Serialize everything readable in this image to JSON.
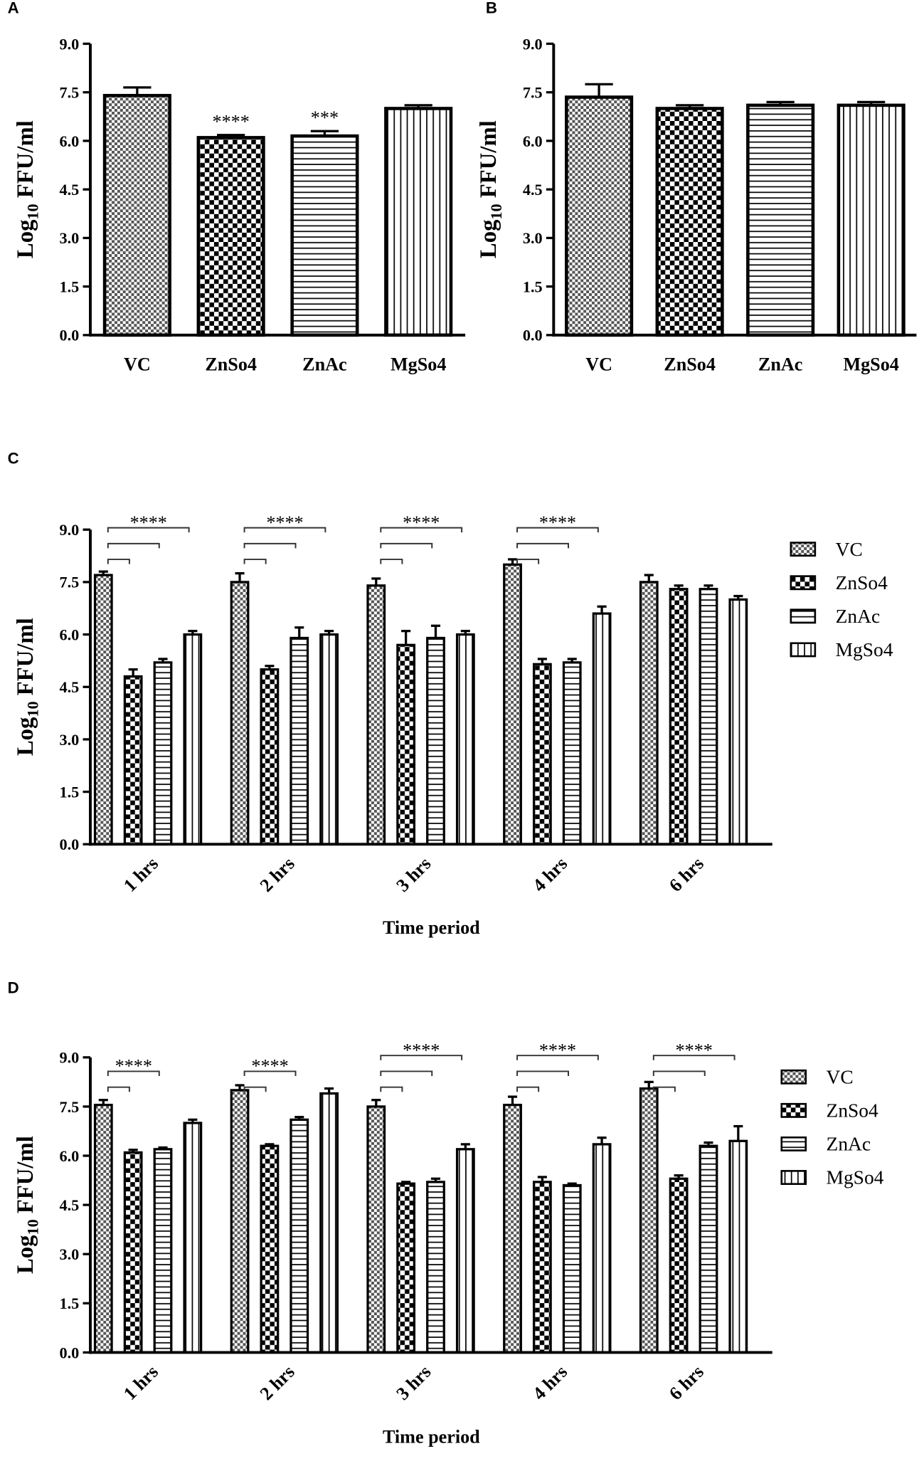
{
  "chart_data": [
    {
      "type": "bar",
      "panel": "A",
      "y_label": [
        "Log",
        "10",
        " FFU/ml"
      ],
      "categories": [
        "VC",
        "ZnSo4",
        "ZnAc",
        "MgSo4"
      ],
      "values": [
        7.4,
        6.1,
        6.15,
        7.0
      ],
      "errors": [
        0.25,
        0.08,
        0.15,
        0.1
      ],
      "significance": [
        null,
        "****",
        "***",
        null
      ],
      "patterns": [
        "checker-fine",
        "checker",
        "hstripe",
        "vstripe"
      ],
      "color": "#000000",
      "ylim": [
        0,
        9
      ],
      "yticks": [
        {
          "value": 0,
          "label": "0.0"
        },
        1.5,
        {
          "value": 3,
          "label": "3.0"
        },
        4.5,
        {
          "value": 6,
          "label": "6.0"
        },
        7.5,
        {
          "value": 9,
          "label": "9.0"
        }
      ]
    },
    {
      "type": "bar",
      "panel": "B",
      "y_label": [
        "Log",
        "10",
        " FFU/ml"
      ],
      "categories": [
        "VC",
        "ZnSo4",
        "ZnAc",
        "MgSo4"
      ],
      "values": [
        7.35,
        7.0,
        7.1,
        7.1
      ],
      "errors": [
        0.4,
        0.1,
        0.1,
        0.1
      ],
      "patterns": [
        "checker-fine",
        "checker",
        "hstripe",
        "vstripe"
      ],
      "color": "#000000",
      "ylim": [
        0,
        9
      ],
      "yticks": [
        {
          "value": 0,
          "label": "0.0"
        },
        1.5,
        {
          "value": 3,
          "label": "3.0"
        },
        4.5,
        {
          "value": 6,
          "label": "6.0"
        },
        7.5,
        {
          "value": 9,
          "label": "9.0"
        }
      ]
    },
    {
      "type": "bar",
      "panel": "C",
      "y_label": [
        "Log",
        "10",
        " FFU/ml"
      ],
      "x_label": "Time period",
      "categories": [
        "1 hrs",
        "2 hrs",
        "3 hrs",
        "4 hrs",
        "6 hrs"
      ],
      "series": [
        {
          "name": "VC",
          "pattern": "checker-fine",
          "color": "#000000",
          "values": [
            7.7,
            7.5,
            7.4,
            8.0,
            7.5
          ],
          "errors": [
            0.1,
            0.25,
            0.2,
            0.15,
            0.2
          ]
        },
        {
          "name": "ZnSo4",
          "pattern": "checker",
          "color": "#000000",
          "values": [
            4.8,
            5.0,
            5.7,
            5.15,
            7.3
          ],
          "errors": [
            0.2,
            0.1,
            0.4,
            0.15,
            0.1
          ]
        },
        {
          "name": "ZnAc",
          "pattern": "hstripe",
          "color": "#000000",
          "values": [
            5.2,
            5.9,
            5.9,
            5.2,
            7.3
          ],
          "errors": [
            0.1,
            0.3,
            0.35,
            0.1,
            0.1
          ]
        },
        {
          "name": "MgSo4",
          "pattern": "vstripe",
          "color": "#000000",
          "values": [
            6.0,
            6.0,
            6.0,
            6.6,
            7.0
          ],
          "errors": [
            0.1,
            0.1,
            0.1,
            0.2,
            0.1
          ]
        }
      ],
      "significance": [
        {
          "category": 0,
          "targets": [
            1,
            2,
            3
          ],
          "label": "****"
        },
        {
          "category": 1,
          "targets": [
            1,
            2,
            3
          ],
          "label": "****"
        },
        {
          "category": 2,
          "targets": [
            1,
            2,
            3
          ],
          "label": "****"
        },
        {
          "category": 3,
          "targets": [
            1,
            2,
            3
          ],
          "label": "****"
        }
      ],
      "legend": "right",
      "ylim": [
        0,
        9
      ],
      "yticks": [
        {
          "value": 0,
          "label": "0.0"
        },
        1.5,
        {
          "value": 3,
          "label": "3.0"
        },
        4.5,
        {
          "value": 6,
          "label": "6.0"
        },
        7.5,
        {
          "value": 9,
          "label": "9.0"
        }
      ]
    },
    {
      "type": "bar",
      "panel": "D",
      "y_label": [
        "Log",
        "10",
        " FFU/ml"
      ],
      "x_label": "Time period",
      "categories": [
        "1 hrs",
        "2 hrs",
        "3 hrs",
        "4 hrs",
        "6 hrs"
      ],
      "series": [
        {
          "name": "VC",
          "pattern": "checker-fine",
          "color": "#000000",
          "values": [
            7.55,
            8.0,
            7.5,
            7.55,
            8.05
          ],
          "errors": [
            0.15,
            0.15,
            0.2,
            0.25,
            0.2
          ]
        },
        {
          "name": "ZnSo4",
          "pattern": "checker",
          "color": "#000000",
          "values": [
            6.1,
            6.3,
            5.15,
            5.2,
            5.3
          ],
          "errors": [
            0.08,
            0.05,
            0.05,
            0.15,
            0.1
          ]
        },
        {
          "name": "ZnAc",
          "pattern": "hstripe",
          "color": "#000000",
          "values": [
            6.2,
            7.1,
            5.2,
            5.1,
            6.3
          ],
          "errors": [
            0.05,
            0.08,
            0.1,
            0.05,
            0.1
          ]
        },
        {
          "name": "MgSo4",
          "pattern": "vstripe",
          "color": "#000000",
          "values": [
            7.0,
            7.9,
            6.2,
            6.35,
            6.45
          ],
          "errors": [
            0.1,
            0.15,
            0.15,
            0.2,
            0.45
          ]
        }
      ],
      "significance": [
        {
          "category": 0,
          "targets": [
            1,
            2
          ],
          "label": "****"
        },
        {
          "category": 1,
          "targets": [
            1,
            2
          ],
          "label": "****"
        },
        {
          "category": 2,
          "targets": [
            1,
            2,
            3
          ],
          "label": "****"
        },
        {
          "category": 3,
          "targets": [
            1,
            2,
            3
          ],
          "label": "****"
        },
        {
          "category": 4,
          "targets": [
            1,
            2,
            3
          ],
          "label": "****"
        }
      ],
      "legend": "right",
      "ylim": [
        0,
        9
      ],
      "yticks": [
        {
          "value": 0,
          "label": "0.0"
        },
        1.5,
        {
          "value": 3,
          "label": "3.0"
        },
        4.5,
        {
          "value": 6,
          "label": "6.0"
        },
        7.5,
        {
          "value": 9,
          "label": "9.0"
        }
      ]
    }
  ]
}
